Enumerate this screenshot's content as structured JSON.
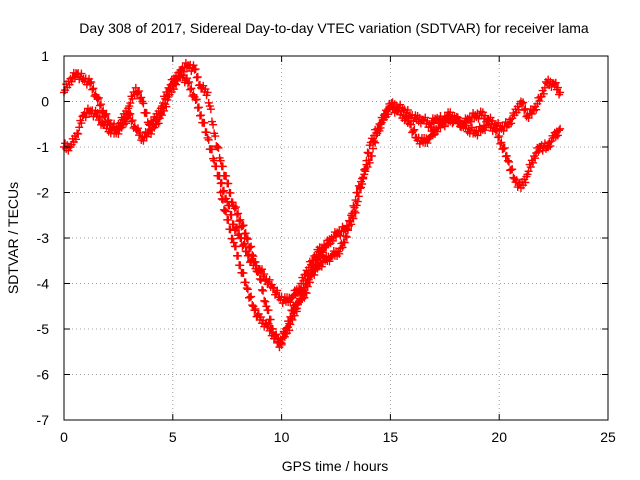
{
  "chart_data": {
    "type": "scatter",
    "title": "Day 308 of 2017, Sidereal Day-to-day VTEC variation (SDTVAR) for receiver lama",
    "xlabel": "GPS time / hours",
    "ylabel": "SDTVAR / TECUs",
    "xlim": [
      0,
      25
    ],
    "ylim": [
      -7,
      1
    ],
    "xticks": [
      0,
      5,
      10,
      15,
      20,
      25
    ],
    "yticks": [
      1,
      0,
      -1,
      -2,
      -3,
      -4,
      -5,
      -6,
      -7
    ],
    "grid": true,
    "marker": "+",
    "color": "#ff0000",
    "series": [
      {
        "x": [
          0.0,
          0.3,
          0.6,
          0.9,
          1.2,
          1.5,
          1.8,
          2.1,
          2.4,
          2.7,
          3.0,
          3.3,
          3.6,
          3.9,
          4.2,
          4.5,
          4.8,
          5.1,
          5.4,
          5.7,
          6.0,
          6.3,
          6.6,
          6.9,
          7.2,
          7.5,
          7.8,
          8.1,
          8.4,
          8.7,
          9.0,
          9.3,
          9.6,
          9.9,
          10.2,
          10.5,
          10.8,
          11.1,
          11.4,
          11.7,
          12.0,
          12.3,
          12.6,
          12.9,
          13.2,
          13.5,
          13.8,
          14.1,
          14.4,
          14.7,
          15.0,
          15.3,
          15.6,
          15.9,
          16.2,
          16.5,
          16.8,
          17.1,
          17.4,
          17.7,
          18.0,
          18.3,
          18.6,
          18.9,
          19.2,
          19.5,
          19.8,
          20.1,
          20.4,
          20.7,
          21.0,
          21.3,
          21.6,
          21.9,
          22.2,
          22.5,
          22.8
        ],
        "y": [
          0.2,
          0.5,
          0.6,
          0.5,
          0.4,
          0.1,
          -0.2,
          -0.5,
          -0.6,
          -0.4,
          -0.1,
          0.3,
          0.0,
          -0.5,
          -0.4,
          -0.1,
          0.3,
          0.5,
          0.6,
          0.4,
          0.1,
          -0.3,
          -0.8,
          -1.3,
          -1.8,
          -2.2,
          -2.7,
          -3.0,
          -3.3,
          -3.6,
          -3.7,
          -3.9,
          -4.1,
          -4.3,
          -4.4,
          -4.3,
          -4.1,
          -3.8,
          -3.5,
          -3.3,
          -3.2,
          -3.0,
          -2.9,
          -2.8,
          -2.7,
          -2.2,
          -1.5,
          -0.9,
          -0.6,
          -0.4,
          -0.1,
          -0.1,
          -0.2,
          -0.3,
          -0.4,
          -0.4,
          -0.5,
          -0.4,
          -0.4,
          -0.3,
          -0.4,
          -0.5,
          -0.4,
          -0.3,
          -0.3,
          -0.4,
          -0.5,
          -0.6,
          -0.5,
          -0.3,
          0.0,
          -0.3,
          -0.2,
          0.1,
          0.4,
          0.4,
          0.2
        ]
      },
      {
        "x": [
          0.0,
          0.3,
          0.6,
          0.9,
          1.2,
          1.5,
          1.8,
          2.1,
          2.4,
          2.7,
          3.0,
          3.3,
          3.6,
          3.9,
          4.2,
          4.5,
          4.8,
          5.1,
          5.4,
          5.7,
          6.0,
          6.3,
          6.6,
          6.9,
          7.2,
          7.5,
          7.8,
          8.1,
          8.4,
          8.7,
          9.0,
          9.3,
          9.6,
          9.9,
          10.2,
          10.5,
          10.8,
          11.1,
          11.4,
          11.7,
          12.0,
          12.3,
          12.6,
          12.9,
          13.2,
          13.5,
          13.8,
          14.1,
          14.4,
          14.7,
          15.0,
          15.3,
          15.6,
          15.9,
          16.2,
          16.5,
          16.8,
          17.1,
          17.4,
          17.7,
          18.0,
          18.3,
          18.6,
          18.9,
          19.2,
          19.5,
          19.8,
          20.1,
          20.4,
          20.7,
          21.0,
          21.3,
          21.6,
          21.9,
          22.2,
          22.5,
          22.8
        ],
        "y": [
          -1.0,
          -1.0,
          -0.7,
          -0.3,
          -0.2,
          -0.3,
          -0.5,
          -0.6,
          -0.7,
          -0.5,
          -0.3,
          -0.6,
          -0.8,
          -0.7,
          -0.5,
          -0.3,
          0.1,
          0.4,
          0.7,
          0.8,
          0.7,
          0.3,
          0.2,
          -0.7,
          -1.3,
          -1.8,
          -2.3,
          -2.6,
          -3.0,
          -3.4,
          -3.9,
          -4.5,
          -5.0,
          -5.4,
          -5.0,
          -4.6,
          -4.4,
          -4.2,
          -3.8,
          -3.6,
          -3.5,
          -3.4,
          -3.3,
          -3.1,
          -2.5,
          -2.0,
          -1.6,
          -1.2,
          -0.7,
          -0.3,
          -0.1,
          -0.2,
          -0.3,
          -0.5,
          -0.8,
          -0.9,
          -0.8,
          -0.6,
          -0.5,
          -0.4,
          -0.4,
          -0.5,
          -0.6,
          -0.7,
          -0.6,
          -0.5,
          -0.6,
          -0.9,
          -1.3,
          -1.7,
          -1.9,
          -1.6,
          -1.2,
          -1.0,
          -1.0,
          -0.8,
          -0.6
        ]
      },
      {
        "x": [
          7.2,
          7.5,
          7.8,
          8.1,
          8.4,
          8.7,
          9.0,
          9.3,
          9.6,
          9.9,
          10.2,
          10.5,
          10.8,
          11.1,
          11.4,
          11.7,
          12.0
        ],
        "y": [
          -2.0,
          -2.6,
          -3.1,
          -3.6,
          -4.1,
          -4.5,
          -4.8,
          -4.9,
          -5.1,
          -5.3,
          -5.1,
          -4.8,
          -4.4,
          -4.0,
          -3.7,
          -3.4,
          -3.2
        ]
      }
    ]
  }
}
